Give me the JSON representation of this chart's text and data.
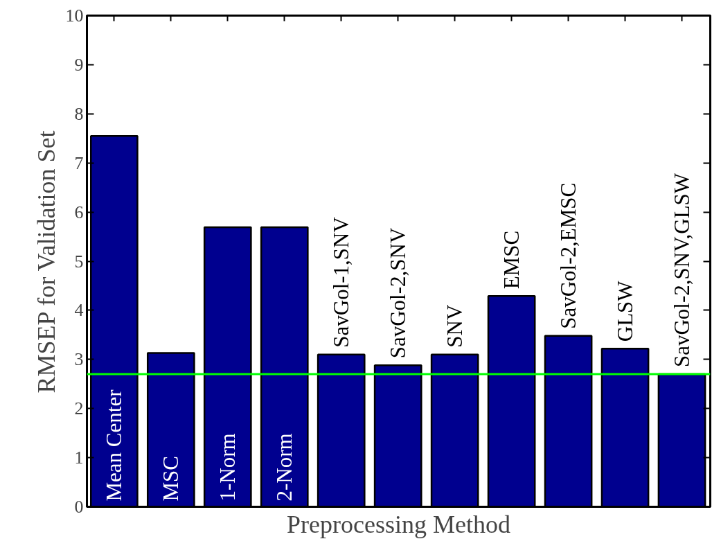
{
  "chart_data": {
    "type": "bar",
    "categories": [
      "Mean Center",
      "MSC",
      "1-Norm",
      "2-Norm",
      "SavGol-1,SNV",
      "SavGol-2,SNV",
      "SNV",
      "EMSC",
      "SavGol-2,EMSC",
      "GLSW",
      "SavGol-2,SNV,GLSW"
    ],
    "values": [
      7.55,
      3.13,
      5.69,
      5.69,
      3.1,
      2.88,
      3.1,
      4.29,
      3.48,
      3.22,
      2.7
    ],
    "color": "#00008f",
    "xlabel": "Preprocessing Method",
    "ylabel": "RMSEP for Validation Set",
    "ylim": [
      0,
      10
    ],
    "yticks": [
      0,
      1,
      2,
      3,
      4,
      5,
      6,
      7,
      8,
      9,
      10
    ],
    "ref_lines": [
      {
        "axis": "y",
        "value": 2.7,
        "color": "#00ff00"
      }
    ]
  }
}
